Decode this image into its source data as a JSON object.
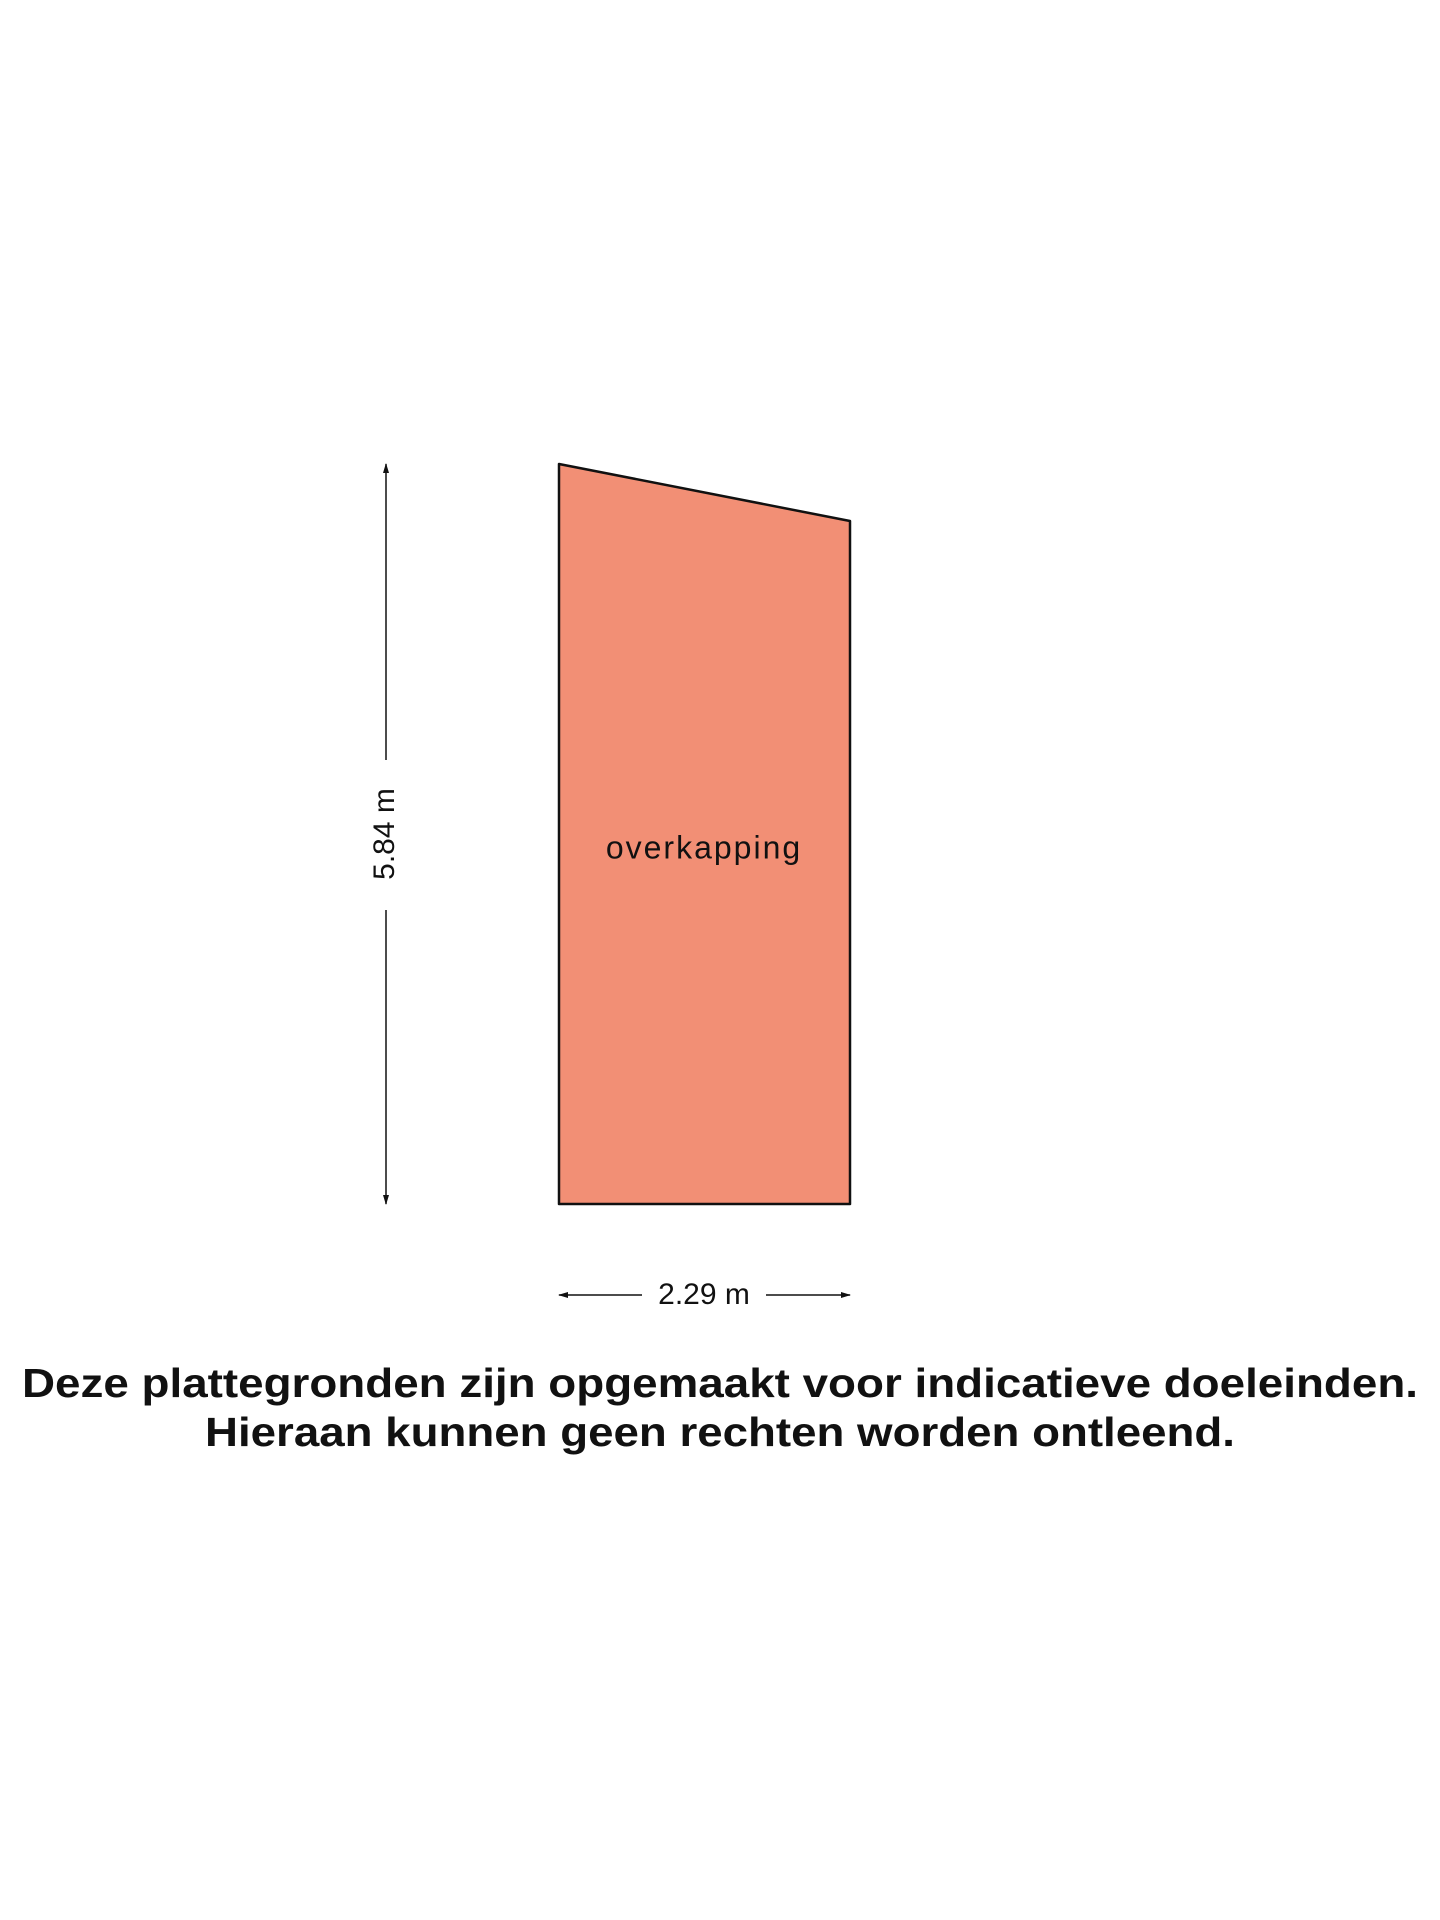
{
  "room": {
    "label": "overkapping"
  },
  "dimensions": {
    "height": "5.84 m",
    "width": "2.29 m"
  },
  "disclaimer": {
    "lines": [
      "Deze plattegronden zijn opgemaakt voor indicatieve doeleinden.",
      "Hieraan kunnen geen rechten worden ontleend."
    ]
  }
}
